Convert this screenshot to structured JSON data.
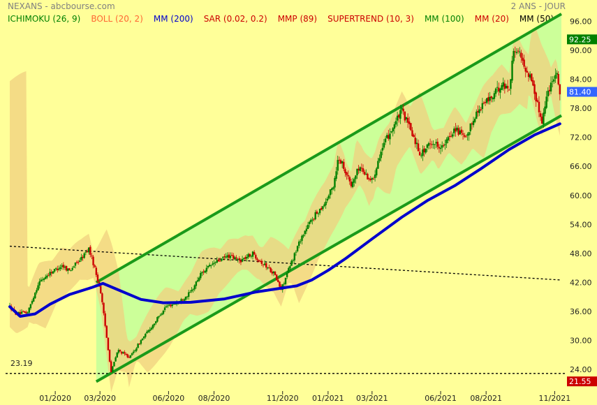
{
  "header": {
    "title": "NEXANS - abcbourse.com",
    "period": "2 ANS - JOUR"
  },
  "indicators": [
    {
      "label": "ICHIMOKU (26, 9)",
      "color": "#008000"
    },
    {
      "label": "BOLL (20, 2)",
      "color": "#ff6633"
    },
    {
      "label": "MM (200)",
      "color": "#0000cc"
    },
    {
      "label": "SAR (0.02, 0.2)",
      "color": "#cc0000"
    },
    {
      "label": "MMP (89)",
      "color": "#cc0000"
    },
    {
      "label": "SUPERTREND (10, 3)",
      "color": "#cc0000"
    },
    {
      "label": "MM (100)",
      "color": "#008000"
    },
    {
      "label": "MM (20)",
      "color": "#cc0000"
    },
    {
      "label": "MM (50)",
      "color": "#000000"
    }
  ],
  "badges": {
    "high": {
      "value": "92.25",
      "color": "#008000"
    },
    "last": {
      "value": "81.40",
      "color": "#3366ff"
    },
    "low": {
      "value": "21.55",
      "color": "#cc0000"
    }
  },
  "support_label": "23.19",
  "colors": {
    "background": "#ffff99",
    "channel_fill": "#ccff99",
    "channel_line": "#1a9a1a",
    "cloud": "#f0d080",
    "ma200": "#0000cc",
    "candle_up": "#008000",
    "candle_down": "#cc0000"
  },
  "chart_data": {
    "type": "candlestick",
    "ylim": [
      21.0,
      97.5
    ],
    "y_ticks": [
      "96.00",
      "90.00",
      "84.00",
      "78.00",
      "72.00",
      "66.00",
      "60.00",
      "54.00",
      "48.00",
      "42.00",
      "36.00",
      "30.00",
      "24.00"
    ],
    "x_ticks": [
      "01/2020",
      "03/2020",
      "06/2020",
      "08/2020",
      "11/2020",
      "01/2021",
      "03/2021",
      "06/2021",
      "08/2021",
      "11/2021"
    ],
    "price_path": [
      [
        "2019-11-01",
        37.0
      ],
      [
        "2019-11-10",
        35.5
      ],
      [
        "2019-11-25",
        35.8
      ],
      [
        "2019-12-10",
        42.0
      ],
      [
        "2019-12-25",
        44.0
      ],
      [
        "2020-01-10",
        45.5
      ],
      [
        "2020-01-20",
        44.5
      ],
      [
        "2020-02-05",
        47.0
      ],
      [
        "2020-02-15",
        49.0
      ],
      [
        "2020-02-22",
        45.5
      ],
      [
        "2020-03-02",
        40.0
      ],
      [
        "2020-03-08",
        33.0
      ],
      [
        "2020-03-16",
        23.5
      ],
      [
        "2020-03-25",
        28.0
      ],
      [
        "2020-04-10",
        26.5
      ],
      [
        "2020-04-25",
        30.0
      ],
      [
        "2020-05-10",
        33.0
      ],
      [
        "2020-05-28",
        37.0
      ],
      [
        "2020-06-15",
        38.0
      ],
      [
        "2020-07-01",
        40.0
      ],
      [
        "2020-07-15",
        44.0
      ],
      [
        "2020-08-01",
        46.0
      ],
      [
        "2020-08-20",
        47.5
      ],
      [
        "2020-09-05",
        46.5
      ],
      [
        "2020-09-22",
        48.0
      ],
      [
        "2020-10-05",
        46.0
      ],
      [
        "2020-10-20",
        44.0
      ],
      [
        "2020-10-30",
        40.5
      ],
      [
        "2020-11-10",
        45.0
      ],
      [
        "2020-11-25",
        51.0
      ],
      [
        "2020-12-10",
        55.0
      ],
      [
        "2020-12-28",
        58.5
      ],
      [
        "2021-01-08",
        62.0
      ],
      [
        "2021-01-15",
        68.0
      ],
      [
        "2021-01-22",
        66.0
      ],
      [
        "2021-02-01",
        62.0
      ],
      [
        "2021-02-12",
        66.0
      ],
      [
        "2021-02-22",
        64.0
      ],
      [
        "2021-03-02",
        63.0
      ],
      [
        "2021-03-10",
        68.0
      ],
      [
        "2021-03-20",
        71.5
      ],
      [
        "2021-04-01",
        75.0
      ],
      [
        "2021-04-10",
        77.5
      ],
      [
        "2021-04-22",
        73.5
      ],
      [
        "2021-05-05",
        68.5
      ],
      [
        "2021-05-20",
        71.0
      ],
      [
        "2021-06-05",
        70.0
      ],
      [
        "2021-06-20",
        74.0
      ],
      [
        "2021-07-05",
        71.5
      ],
      [
        "2021-07-15",
        76.0
      ],
      [
        "2021-07-28",
        79.0
      ],
      [
        "2021-08-10",
        80.5
      ],
      [
        "2021-08-22",
        83.0
      ],
      [
        "2021-09-01",
        82.0
      ],
      [
        "2021-09-06",
        89.0
      ],
      [
        "2021-09-12",
        90.5
      ],
      [
        "2021-09-20",
        87.0
      ],
      [
        "2021-10-01",
        84.0
      ],
      [
        "2021-10-10",
        78.0
      ],
      [
        "2021-10-15",
        75.5
      ],
      [
        "2021-10-22",
        81.0
      ],
      [
        "2021-10-29",
        84.0
      ],
      [
        "2021-11-03",
        86.0
      ],
      [
        "2021-11-08",
        81.4
      ]
    ],
    "ma200_path": [
      [
        "2019-11-01",
        37.0
      ],
      [
        "2019-11-15",
        35.0
      ],
      [
        "2019-12-05",
        35.5
      ],
      [
        "2019-12-25",
        37.5
      ],
      [
        "2020-01-20",
        39.5
      ],
      [
        "2020-02-20",
        41.0
      ],
      [
        "2020-03-05",
        41.8
      ],
      [
        "2020-03-25",
        40.5
      ],
      [
        "2020-04-25",
        38.5
      ],
      [
        "2020-05-25",
        37.8
      ],
      [
        "2020-07-01",
        37.9
      ],
      [
        "2020-08-15",
        38.6
      ],
      [
        "2020-09-25",
        40.0
      ],
      [
        "2020-10-25",
        40.7
      ],
      [
        "2020-11-20",
        41.3
      ],
      [
        "2020-12-10",
        42.5
      ],
      [
        "2021-01-01",
        44.5
      ],
      [
        "2021-01-25",
        47.0
      ],
      [
        "2021-03-01",
        51.0
      ],
      [
        "2021-04-10",
        55.5
      ],
      [
        "2021-05-15",
        59.0
      ],
      [
        "2021-06-20",
        62.0
      ],
      [
        "2021-07-25",
        65.5
      ],
      [
        "2021-09-01",
        69.5
      ],
      [
        "2021-10-05",
        72.5
      ],
      [
        "2021-11-08",
        74.8
      ]
    ],
    "channel_upper": [
      [
        "2020-02-25",
        42.0
      ],
      [
        "2021-11-10",
        97.5
      ]
    ],
    "channel_lower": [
      [
        "2020-02-25",
        21.5
      ],
      [
        "2021-11-10",
        76.5
      ]
    ],
    "dotted_trend": [
      [
        "2019-11-01",
        49.5
      ],
      [
        "2021-11-10",
        42.5
      ]
    ],
    "support_line": {
      "value": 23.19
    }
  }
}
